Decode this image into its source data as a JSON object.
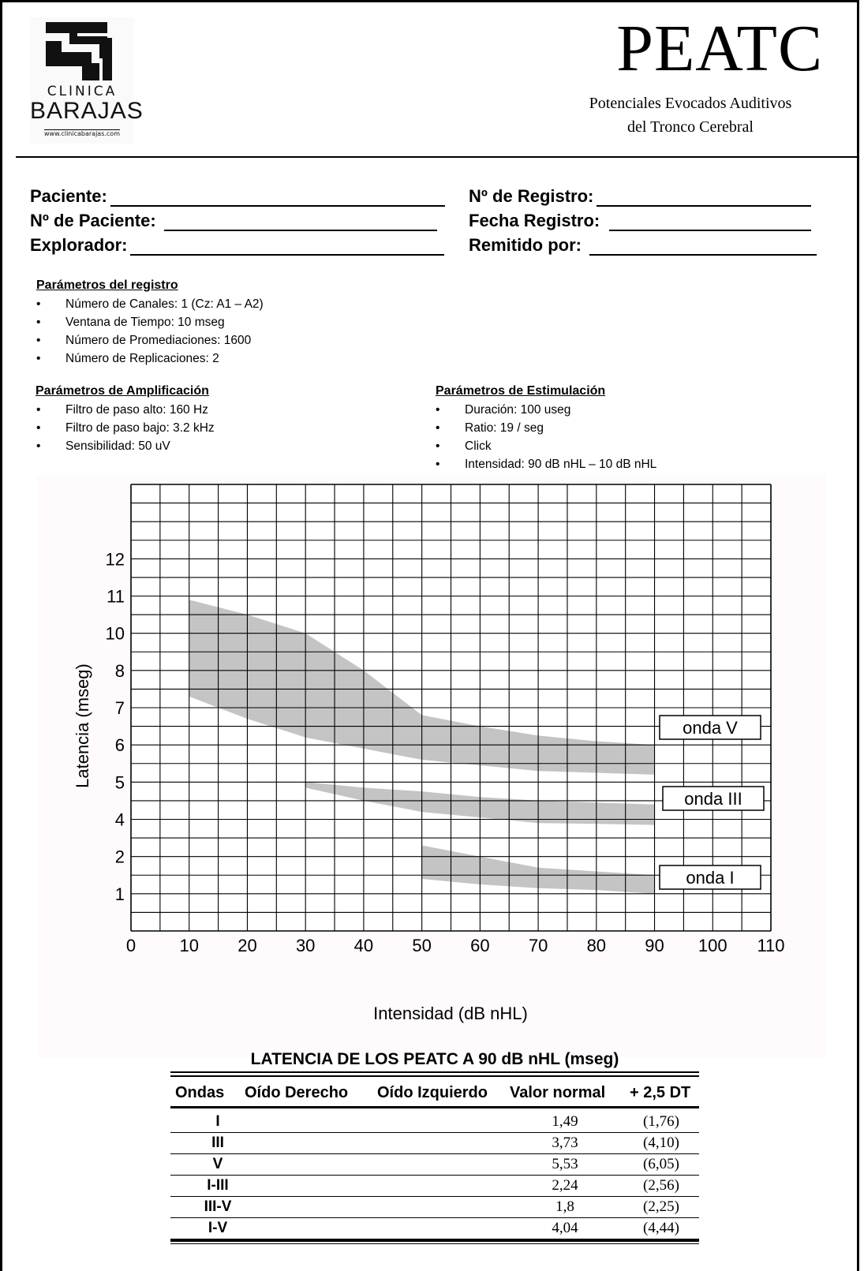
{
  "header": {
    "logo_line1": "CLINICA",
    "logo_line2": "BARAJAS",
    "logo_url": "www.clinicabarajas.com",
    "title": "PEATC",
    "subtitle_line1": "Potenciales Evocados Auditivos",
    "subtitle_line2": "del Tronco Cerebral"
  },
  "patient": {
    "paciente": "Paciente:",
    "num_paciente": "Nº de Paciente:",
    "explorador": "Explorador:",
    "num_registro": "Nº de Registro:",
    "fecha_registro": "Fecha Registro:",
    "remitido_por": "Remitido por:"
  },
  "parametros_registro": {
    "title": "Parámetros del registro",
    "items": [
      "Número de Canales: 1 (Cz: A1 – A2)",
      "Ventana de Tiempo: 10 mseg",
      "Número de Promediaciones: 1600",
      "Número de Replicaciones: 2"
    ]
  },
  "parametros_amplificacion": {
    "title": "Parámetros de Amplificación",
    "items": [
      "Filtro de paso alto: 160 Hz",
      "Filtro de paso bajo: 3.2 kHz",
      "Sensibilidad: 50 uV"
    ]
  },
  "parametros_estimulacion": {
    "title": "Parámetros de Estimulación",
    "items": [
      "Duración: 100 useg",
      "Ratio: 19 / seg",
      "Click",
      "Intensidad: 90 dB nHL – 10 dB nHL"
    ]
  },
  "chart_data": {
    "type": "area",
    "xlabel": "Intensidad (dB nHL)",
    "ylabel": "Latencia  (mseg)",
    "xlim": [
      0,
      110
    ],
    "ylim": [
      0,
      12
    ],
    "x_ticks": [
      0,
      10,
      20,
      30,
      40,
      50,
      60,
      70,
      80,
      90,
      100,
      110
    ],
    "y_ticks": [
      {
        "v": 1,
        "label": "1"
      },
      {
        "v": 2,
        "label": "2"
      },
      {
        "v": 3,
        "label": "4"
      },
      {
        "v": 4,
        "label": "5"
      },
      {
        "v": 5,
        "label": "6"
      },
      {
        "v": 6,
        "label": "7"
      },
      {
        "v": 7,
        "label": "8"
      },
      {
        "v": 8,
        "label": "10"
      },
      {
        "v": 9,
        "label": "11"
      },
      {
        "v": 10,
        "label": "12"
      }
    ],
    "grid": true,
    "fill_color": "#c4c4c4",
    "series": [
      {
        "name": "onda V",
        "x": [
          10,
          20,
          30,
          40,
          50,
          60,
          70,
          80,
          90
        ],
        "upper": [
          8.9,
          8.5,
          8.0,
          7.0,
          5.8,
          5.5,
          5.25,
          5.1,
          5.0
        ],
        "lower": [
          6.3,
          5.7,
          5.2,
          4.9,
          4.6,
          4.45,
          4.3,
          4.25,
          4.2
        ]
      },
      {
        "name": "onda III",
        "x": [
          30,
          40,
          50,
          60,
          70,
          80,
          90
        ],
        "upper": [
          4.0,
          3.85,
          3.75,
          3.6,
          3.5,
          3.45,
          3.4
        ],
        "lower": [
          3.85,
          3.5,
          3.2,
          3.05,
          2.9,
          2.88,
          2.85
        ]
      },
      {
        "name": "onda I",
        "x": [
          50,
          60,
          70,
          80,
          90
        ],
        "upper": [
          2.3,
          2.0,
          1.7,
          1.6,
          1.5
        ],
        "lower": [
          1.4,
          1.25,
          1.15,
          1.1,
          1.0
        ]
      }
    ]
  },
  "table": {
    "title": "LATENCIA DE LOS PEATC A 90 dB nHL (mseg)",
    "headers": [
      "Ondas",
      "Oído Derecho",
      "Oído Izquierdo",
      "Valor normal",
      "+ 2,5 DT"
    ],
    "rows": [
      {
        "onda": "I",
        "derecho": "",
        "izquierdo": "",
        "normal": "1,49",
        "dt": "(1,76)"
      },
      {
        "onda": "III",
        "derecho": "",
        "izquierdo": "",
        "normal": "3,73",
        "dt": "(4,10)"
      },
      {
        "onda": "V",
        "derecho": "",
        "izquierdo": "",
        "normal": "5,53",
        "dt": "(6,05)"
      },
      {
        "onda": "I-III",
        "derecho": "",
        "izquierdo": "",
        "normal": "2,24",
        "dt": "(2,56)"
      },
      {
        "onda": "III-V",
        "derecho": "",
        "izquierdo": "",
        "normal": "1,8",
        "dt": "(2,25)"
      },
      {
        "onda": "I-V",
        "derecho": "",
        "izquierdo": "",
        "normal": "4,04",
        "dt": "(4,44)"
      }
    ]
  }
}
